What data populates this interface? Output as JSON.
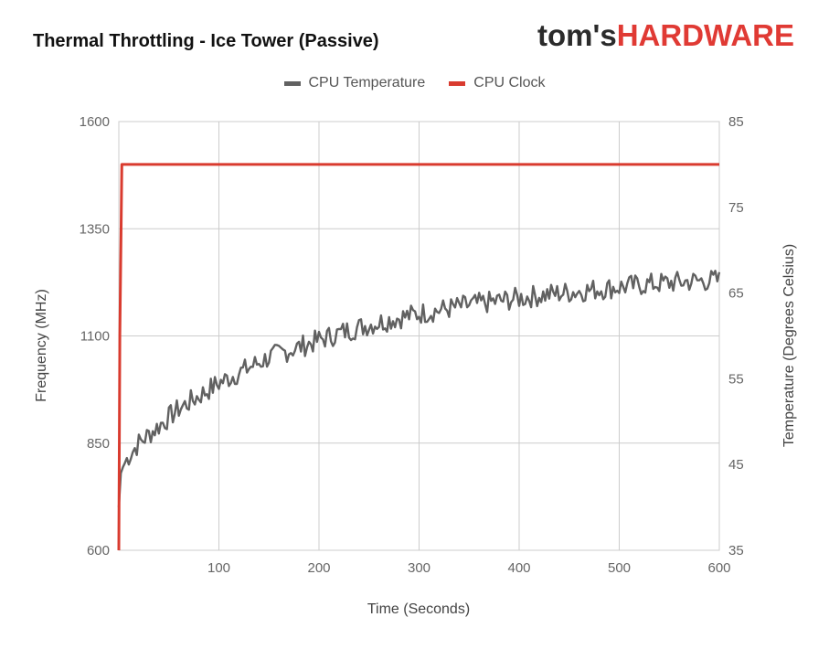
{
  "brand": {
    "part1": "tom's",
    "part2": "HARDWARE"
  },
  "chart_data": {
    "type": "line",
    "title": "Thermal Throttling - Ice Tower (Passive)",
    "xlabel": "Time (Seconds)",
    "ylabel_left": "Frequency (MHz)",
    "ylabel_right": "Temperature (Degrees Celsius)",
    "xlim": [
      0,
      600
    ],
    "ylim_left": [
      600,
      1600
    ],
    "ylim_right": [
      35,
      85
    ],
    "x_ticks": [
      100,
      200,
      300,
      400,
      500,
      600
    ],
    "y_ticks_left": [
      600,
      850,
      1100,
      1350,
      1600
    ],
    "y_ticks_right": [
      35,
      45,
      55,
      65,
      75,
      85
    ],
    "grid": true,
    "legend_position": "top-center",
    "series": [
      {
        "name": "CPU Temperature",
        "axis": "right",
        "color": "#616161",
        "x": [
          0,
          2,
          5,
          10,
          20,
          30,
          40,
          50,
          60,
          80,
          100,
          125,
          150,
          175,
          200,
          225,
          250,
          275,
          300,
          325,
          350,
          375,
          400,
          425,
          450,
          475,
          500,
          525,
          550,
          575,
          600
        ],
        "values": [
          40,
          44,
          45,
          46,
          47.5,
          48.5,
          49.5,
          50.5,
          51.5,
          53,
          54.5,
          56,
          57.5,
          58.5,
          59.5,
          60.5,
          61.3,
          62,
          62.6,
          63.1,
          63.6,
          64,
          64.4,
          64.8,
          65.1,
          65.4,
          65.7,
          66,
          66.2,
          66.4,
          66.5
        ]
      },
      {
        "name": "CPU Clock",
        "axis": "left",
        "color": "#d93b2f",
        "x": [
          0,
          1,
          3,
          600
        ],
        "values": [
          600,
          1100,
          1500,
          1500
        ]
      }
    ]
  }
}
